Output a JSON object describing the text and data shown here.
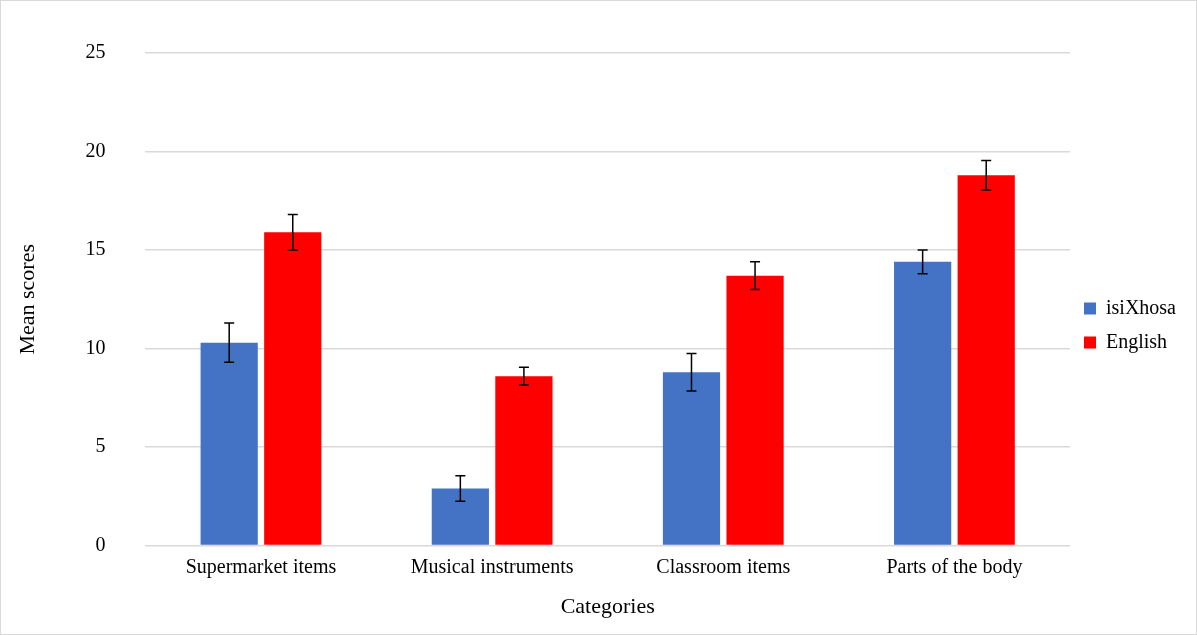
{
  "chart_data": {
    "type": "bar",
    "xlabel": "Categories",
    "ylabel": "Mean scores",
    "categories": [
      "Supermarket items",
      "Musical instruments",
      "Classroom items",
      "Parts of the body"
    ],
    "series": [
      {
        "name": "isiXhosa",
        "color": "#4472c4",
        "values": [
          10.3,
          2.9,
          8.8,
          14.4
        ],
        "errors": [
          1.0,
          0.65,
          0.95,
          0.6
        ]
      },
      {
        "name": "English",
        "color": "#ff0000",
        "values": [
          15.9,
          8.6,
          13.7,
          18.8
        ],
        "errors": [
          0.9,
          0.45,
          0.7,
          0.75
        ]
      }
    ],
    "ylim": [
      0,
      25
    ],
    "yticks": [
      0,
      5,
      10,
      15,
      20,
      25
    ],
    "grid": "y",
    "legend": "right"
  }
}
